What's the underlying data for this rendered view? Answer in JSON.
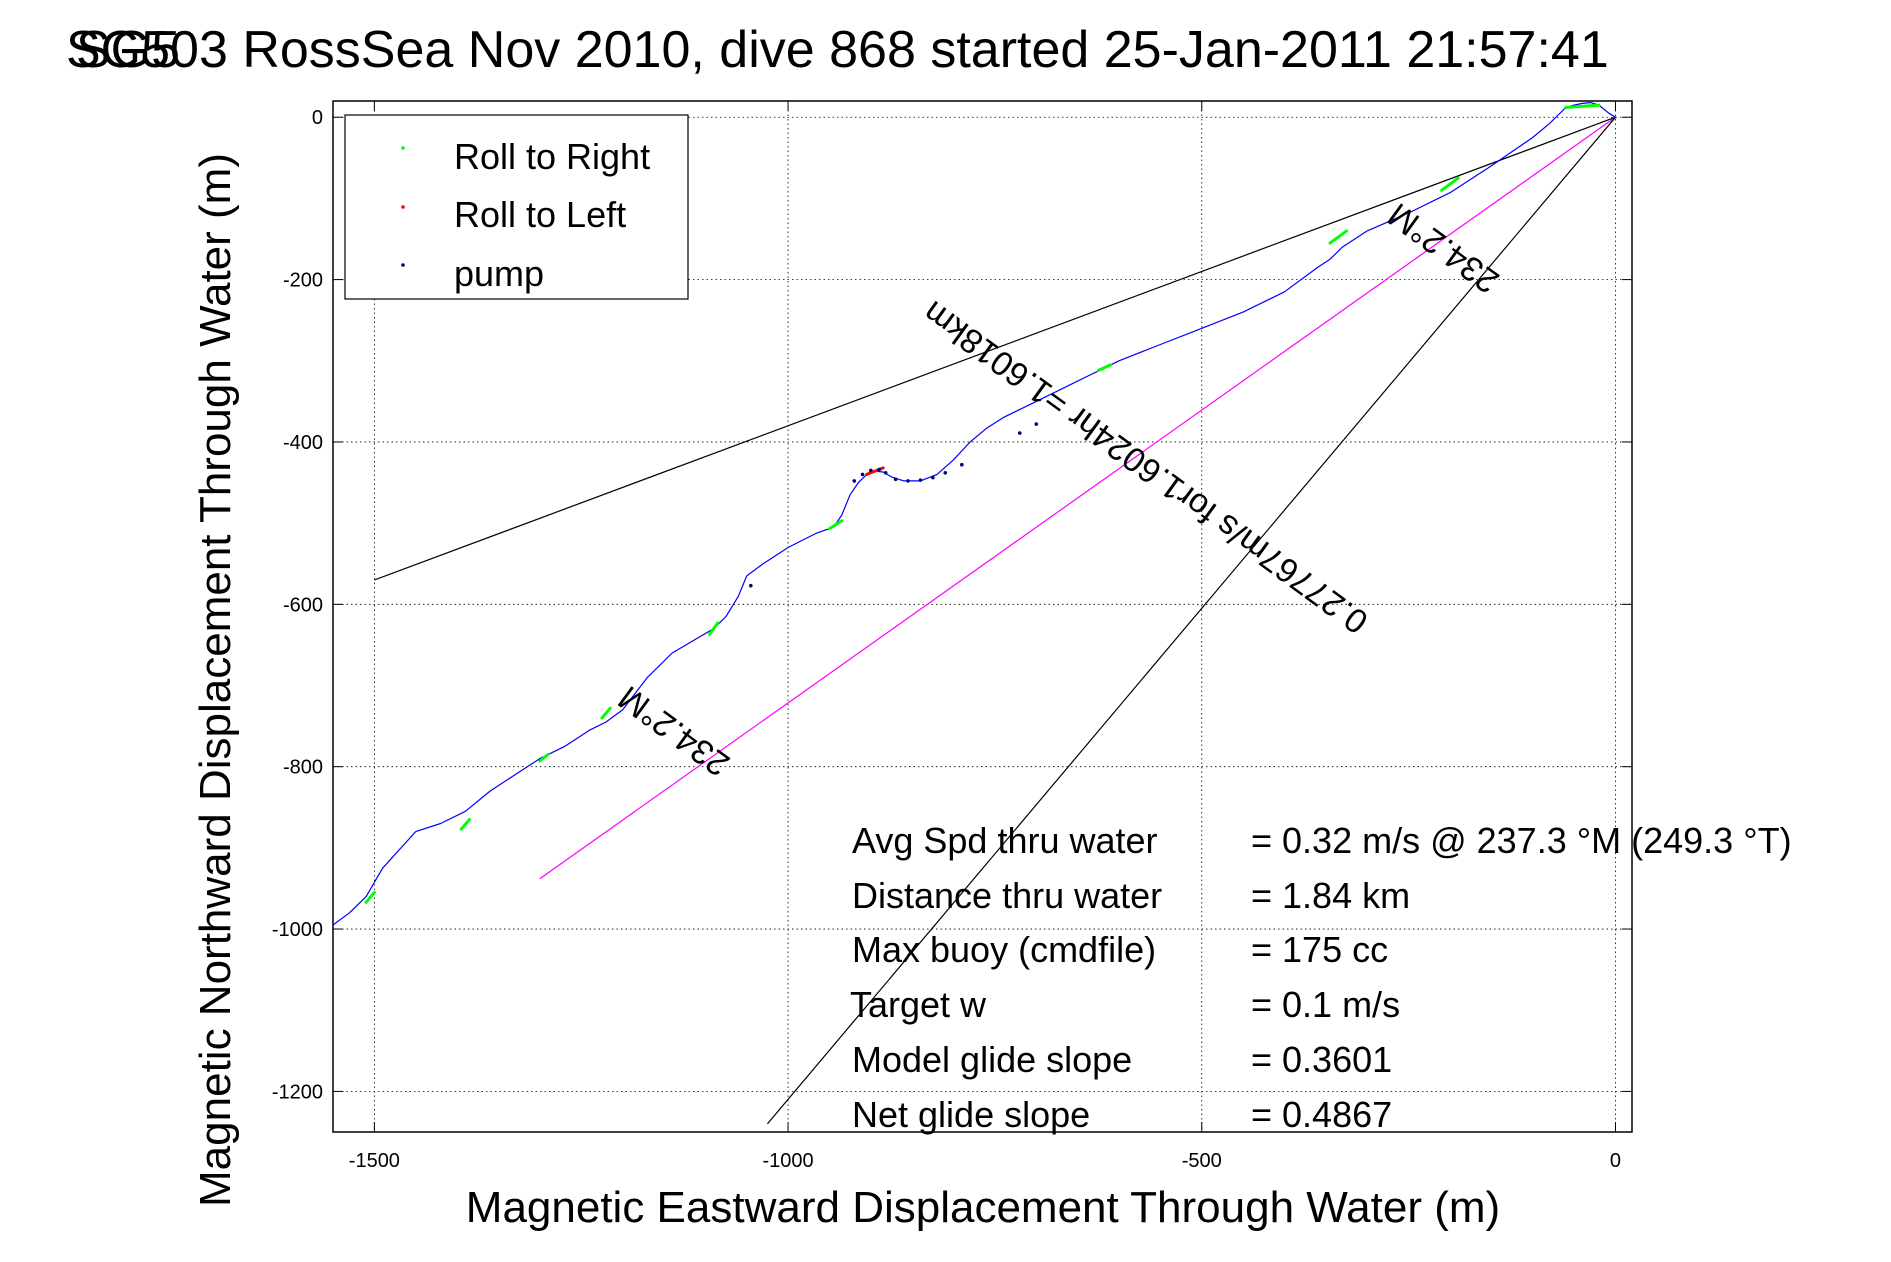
{
  "chart_data": {
    "type": "line",
    "title": "SG503 RossSea Nov 2010, dive 868 started 25-Jan-2011 21:57:41",
    "title_overlap": "SG5",
    "xlabel": "Magnetic Eastward Displacement Through Water (m)",
    "ylabel": "Magnetic Northward Displacement Through Water (m)",
    "xlim": [
      -1550,
      20
    ],
    "ylim": [
      -1250,
      20
    ],
    "xticks": [
      -1500,
      -1000,
      -500,
      0
    ],
    "yticks": [
      0,
      -200,
      -400,
      -600,
      -800,
      -1000,
      -1200
    ],
    "grid": true,
    "legend": {
      "placement": "top-left",
      "entries": [
        {
          "label": "Roll to Right",
          "color": "#00ff00"
        },
        {
          "label": "Roll to Left",
          "color": "#ff0000"
        },
        {
          "label": "pump",
          "color": "#000080"
        }
      ]
    },
    "track": {
      "color": "#0000ff",
      "x": [
        0,
        -8,
        -20,
        -30,
        -40,
        -50,
        -60,
        -80,
        -100,
        -150,
        -200,
        -250,
        -300,
        -330,
        -345,
        -360,
        -400,
        -450,
        -500,
        -550,
        -600,
        -620,
        -640,
        -700,
        -740,
        -760,
        -780,
        -800,
        -820,
        -840,
        -860,
        -875,
        -885,
        -895,
        -905,
        -915,
        -925,
        -935,
        -945,
        -965,
        -1000,
        -1030,
        -1050,
        -1060,
        -1075,
        -1090,
        -1110,
        -1140,
        -1170,
        -1200,
        -1220,
        -1240,
        -1270,
        -1300,
        -1330,
        -1360,
        -1390,
        -1420,
        -1450,
        -1490,
        -1510,
        -1530,
        -1550
      ],
      "y": [
        0,
        5,
        15,
        18,
        17,
        15,
        12,
        -8,
        -25,
        -60,
        -93,
        -118,
        -140,
        -160,
        -175,
        -185,
        -215,
        -240,
        -260,
        -280,
        -300,
        -310,
        -320,
        -350,
        -370,
        -383,
        -400,
        -422,
        -440,
        -448,
        -448,
        -443,
        -437,
        -436,
        -440,
        -450,
        -465,
        -490,
        -505,
        -512,
        -530,
        -550,
        -565,
        -590,
        -615,
        -630,
        -642,
        -660,
        -690,
        -730,
        -745,
        -755,
        -775,
        -790,
        -810,
        -830,
        -855,
        -870,
        -880,
        -925,
        -960,
        -980,
        -995
      ]
    },
    "roll_right_segments": [
      {
        "x": [
          -20,
          -60
        ],
        "y": [
          15,
          12
        ]
      },
      {
        "x": [
          -190,
          -210
        ],
        "y": [
          -75,
          -90
        ]
      },
      {
        "x": [
          -325,
          -345
        ],
        "y": [
          -140,
          -155
        ]
      },
      {
        "x": [
          -610,
          -625
        ],
        "y": [
          -305,
          -312
        ]
      },
      {
        "x": [
          -935,
          -950
        ],
        "y": [
          -497,
          -507
        ]
      },
      {
        "x": [
          -1085,
          -1095
        ],
        "y": [
          -623,
          -637
        ]
      },
      {
        "x": [
          -1215,
          -1225
        ],
        "y": [
          -728,
          -740
        ]
      },
      {
        "x": [
          -1290,
          -1300
        ],
        "y": [
          -785,
          -793
        ]
      },
      {
        "x": [
          -1385,
          -1395
        ],
        "y": [
          -865,
          -877
        ]
      },
      {
        "x": [
          -1500,
          -1510
        ],
        "y": [
          -955,
          -967
        ]
      }
    ],
    "roll_left_segments": [
      {
        "x": [
          -885,
          -905
        ],
        "y": [
          -432,
          -440
        ]
      }
    ],
    "pump_points": {
      "x": [
        -882,
        -890,
        -900,
        -910,
        -920,
        -870,
        -855,
        -840,
        -825,
        -810,
        -790,
        -700,
        -720,
        -1045
      ],
      "y": [
        -438,
        -434,
        -435,
        -440,
        -448,
        -446,
        -448,
        -447,
        -444,
        -438,
        -428,
        -378,
        -389,
        -577
      ]
    },
    "reference_lines": [
      {
        "name": "heading_line",
        "color": "#ff00ff",
        "x": [
          0,
          -1300
        ],
        "y": [
          0,
          -938
        ]
      },
      {
        "name": "envelope_upper",
        "color": "#000000",
        "x": [
          0,
          -1500
        ],
        "y": [
          0,
          -570
        ]
      },
      {
        "name": "envelope_lower",
        "color": "#000000",
        "x": [
          0,
          -1025
        ],
        "y": [
          0,
          -1240
        ]
      }
    ],
    "annotations": [
      {
        "text": "0.27767m/s for1.6024hr =1.6018km",
        "x": -560,
        "y": -420,
        "rotate": -144
      },
      {
        "text": "234.2°M",
        "x": -1130,
        "y": -745,
        "rotate": -144
      },
      {
        "text": "234.2°M",
        "x": -200,
        "y": -150,
        "rotate": -144
      }
    ],
    "stats": [
      {
        "label": "Avg Spd thru water",
        "value": "=  0.32 m/s @ 237.3 °M (249.3 °T)"
      },
      {
        "label": "Distance thru water",
        "value": "=  1.84 km"
      },
      {
        "label": "Max buoy (cmdfile)",
        "value": "= 175 cc"
      },
      {
        "label": "Target w",
        "value": "= 0.1 m/s"
      },
      {
        "label": "Model glide slope",
        "value": "= 0.3601"
      },
      {
        "label": "Net glide slope",
        "value": "= 0.4867"
      }
    ]
  }
}
